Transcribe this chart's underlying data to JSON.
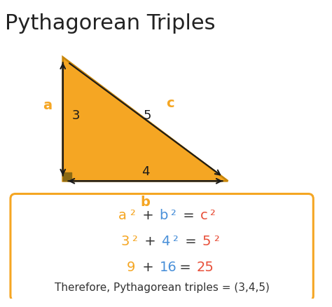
{
  "title": "Pythagorean Triples",
  "title_fontsize": 22,
  "title_color": "#222222",
  "bg_color": "#ffffff",
  "triangle_fill": "#F5A623",
  "triangle_edge": "#C8860A",
  "label_a": "a",
  "label_b": "b",
  "label_c": "c",
  "num_a": "3",
  "num_b": "4",
  "num_c": "5",
  "orange_color": "#F5A623",
  "blue_color": "#4A90D9",
  "red_color": "#E8503A",
  "box_line_color": "#F5A623",
  "box_fill": "#ffffff",
  "formula_line4": "Therefore, Pythagorean triples = (3,4,5)",
  "right_angle_color": "#8B6914",
  "arrow_color": "#1a1a1a"
}
